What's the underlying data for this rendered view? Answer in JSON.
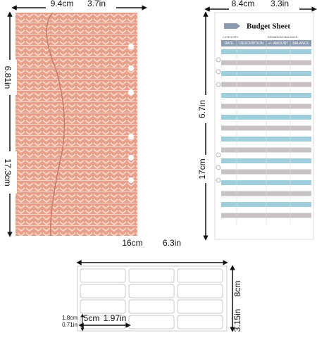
{
  "envelope": {
    "width_cm": "9.4cm",
    "width_in": "3.7in",
    "height_in": "6.81in",
    "height_cm": "17.3cm"
  },
  "budget_sheet": {
    "width_cm": "8.4cm",
    "width_in": "3.3in",
    "height_in": "6.7in",
    "height_cm": "17cm",
    "title": "Budget Sheet",
    "category": "CATEGORY:",
    "beginning_balance": "BEGINNING BALANCE",
    "columns": [
      "DATE",
      "DESCRIPTION",
      "+/- AMOUNT",
      "BALANCE"
    ]
  },
  "labels": {
    "width_cm": "16cm",
    "width_in": "6.3in",
    "height_cm": "8cm",
    "height_in": "3.15in",
    "label_width_cm": "5cm",
    "label_width_in": "1.97in",
    "label_height_cm": "1.8cm",
    "label_height_in": "0.71in"
  }
}
